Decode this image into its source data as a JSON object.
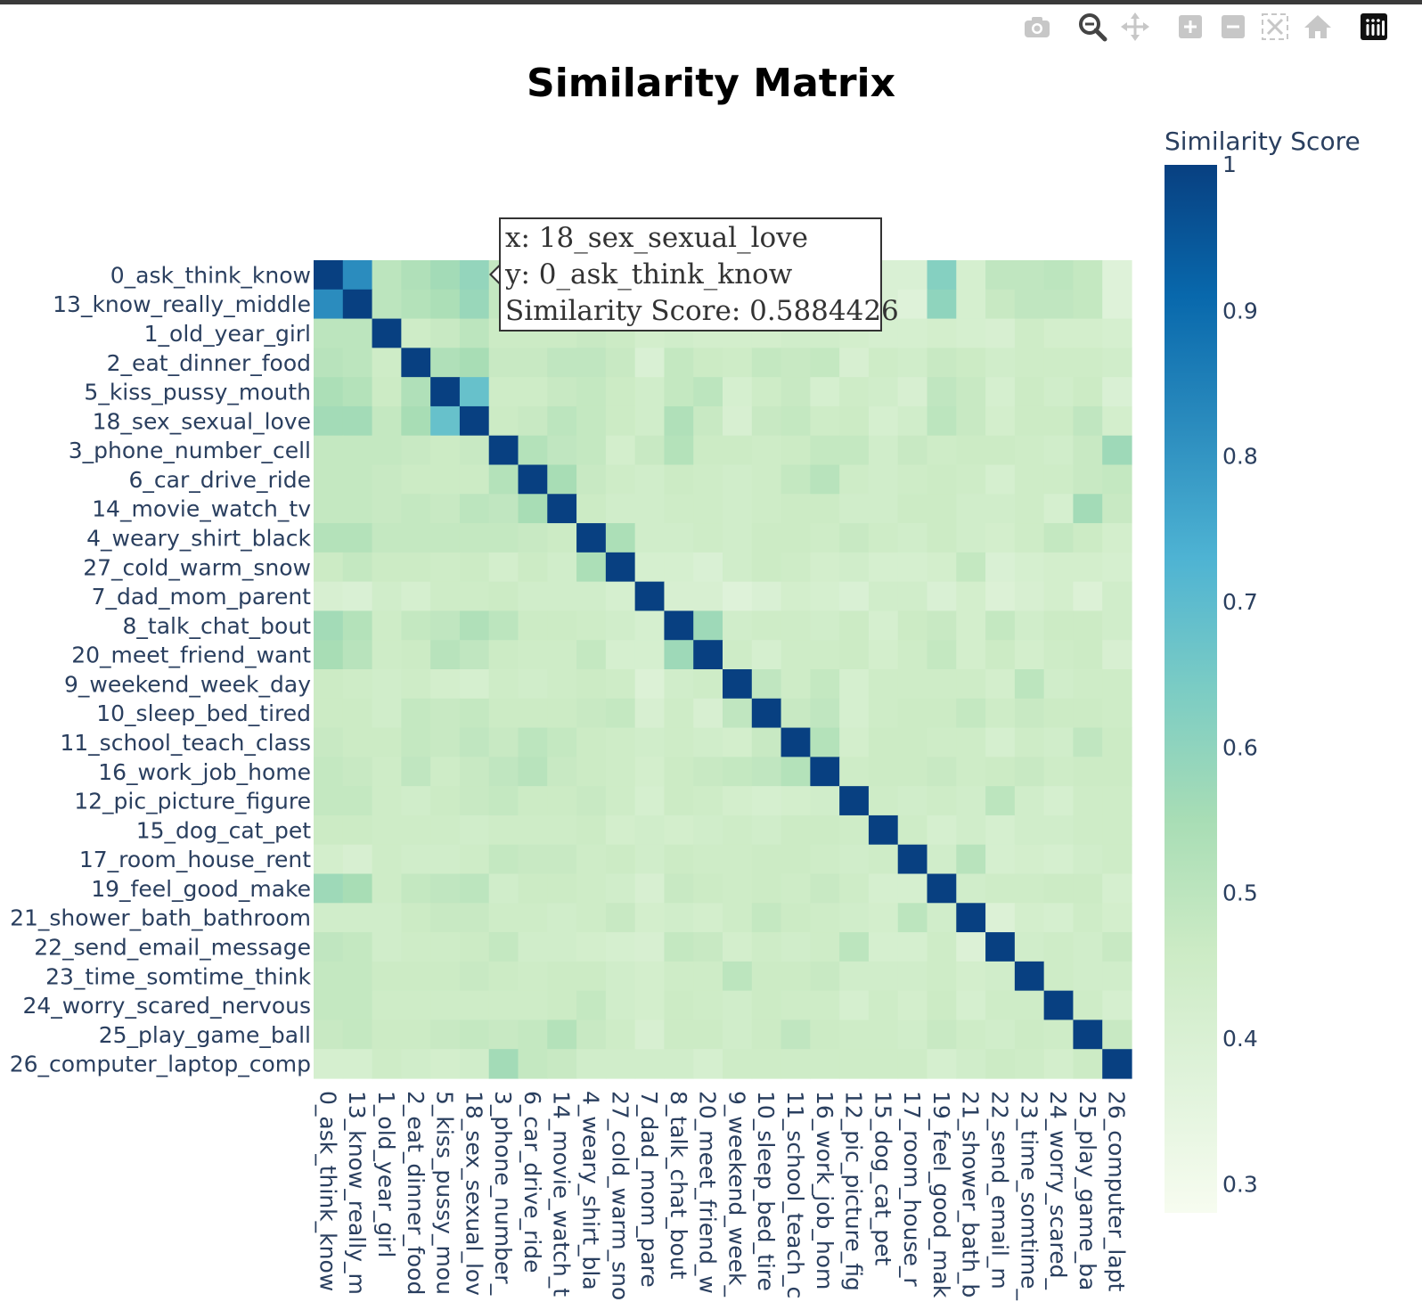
{
  "toolbar": {
    "buttons": [
      {
        "name": "camera-icon",
        "label": "Download plot as a png"
      },
      {
        "name": "zoom-icon",
        "label": "Zoom"
      },
      {
        "name": "pan-icon",
        "label": "Pan"
      },
      {
        "name": "zoom-in-icon",
        "label": "Zoom in"
      },
      {
        "name": "zoom-out-icon",
        "label": "Zoom out"
      },
      {
        "name": "autoscale-icon",
        "label": "Autoscale"
      },
      {
        "name": "home-icon",
        "label": "Reset axes"
      },
      {
        "name": "plotly-logo-icon",
        "label": "Produced with Plotly"
      }
    ]
  },
  "tooltip": {
    "x_line": "x: 18_sex_sexual_love",
    "y_line": "y: 0_ask_think_know",
    "score_line": "Similarity Score: 0.5884426"
  },
  "colors": {
    "scale": [
      "#f7fcf0",
      "#e0f3db",
      "#ccebc5",
      "#a8ddb5",
      "#7bccc4",
      "#4eb3d3",
      "#2b8cbe",
      "#0868ac",
      "#084081"
    ],
    "text": "#2a3f5f"
  },
  "chart_data": {
    "type": "heatmap",
    "title": "Similarity Matrix",
    "colorbar_title": "Similarity Score",
    "colorbar_ticks": [
      "1",
      "0.9",
      "0.8",
      "0.7",
      "0.6",
      "0.5",
      "0.4",
      "0.3"
    ],
    "colorbar_tick_values": [
      1,
      0.9,
      0.8,
      0.7,
      0.6,
      0.5,
      0.4,
      0.3
    ],
    "zmin": 0.28,
    "zmax": 1,
    "x_tick_labels": [
      "0_ask_think_know",
      "13_know_really_m",
      "1_old_year_girl",
      "2_eat_dinner_food",
      "5_kiss_pussy_mou",
      "18_sex_sexual_lov",
      "3_phone_number_",
      "6_car_drive_ride",
      "14_movie_watch_t",
      "4_weary_shirt_bla",
      "27_cold_warm_sno",
      "7_dad_mom_pare",
      "8_talk_chat_bout",
      "20_meet_friend_w",
      "9_weekend_week_",
      "10_sleep_bed_tire",
      "11_school_teach_c",
      "16_work_job_hom",
      "12_pic_picture_fig",
      "15_dog_cat_pet",
      "17_room_house_r",
      "19_feel_good_mak",
      "21_shower_bath_b",
      "22_send_email_m",
      "23_time_somtime_",
      "24_worry_scared_",
      "25_play_game_ba",
      "26_computer_lapt"
    ],
    "y": [
      "0_ask_think_know",
      "13_know_really_middle",
      "1_old_year_girl",
      "2_eat_dinner_food",
      "5_kiss_pussy_mouth",
      "18_sex_sexual_love",
      "3_phone_number_cell",
      "6_car_drive_ride",
      "14_movie_watch_tv",
      "4_weary_shirt_black",
      "27_cold_warm_snow",
      "7_dad_mom_parent",
      "8_talk_chat_bout",
      "20_meet_friend_want",
      "9_weekend_week_day",
      "10_sleep_bed_tired",
      "11_school_teach_class",
      "16_work_job_home",
      "12_pic_picture_figure",
      "15_dog_cat_pet",
      "17_room_house_rent",
      "19_feel_good_make",
      "21_shower_bath_bathroom",
      "22_send_email_message",
      "23_time_somtime_think",
      "24_worry_scared_nervous",
      "25_play_game_ball",
      "26_computer_laptop_comp"
    ],
    "z": [
      [
        1.0,
        0.82,
        0.5,
        0.53,
        0.56,
        0.59,
        0.48,
        0.47,
        0.48,
        0.52,
        0.46,
        0.42,
        0.46,
        0.44,
        0.45,
        0.45,
        0.45,
        0.45,
        0.44,
        0.4,
        0.4,
        0.62,
        0.42,
        0.49,
        0.49,
        0.5,
        0.48,
        0.38
      ],
      [
        0.82,
        1.0,
        0.5,
        0.52,
        0.54,
        0.58,
        0.48,
        0.47,
        0.48,
        0.52,
        0.46,
        0.42,
        0.46,
        0.44,
        0.45,
        0.45,
        0.45,
        0.45,
        0.44,
        0.4,
        0.38,
        0.6,
        0.42,
        0.47,
        0.49,
        0.49,
        0.48,
        0.38
      ],
      [
        0.5,
        0.5,
        1.0,
        0.45,
        0.47,
        0.5,
        0.46,
        0.46,
        0.46,
        0.47,
        0.46,
        0.43,
        0.44,
        0.43,
        0.43,
        0.43,
        0.44,
        0.44,
        0.43,
        0.42,
        0.42,
        0.43,
        0.42,
        0.41,
        0.45,
        0.43,
        0.43,
        0.42
      ],
      [
        0.51,
        0.5,
        0.45,
        1.0,
        0.53,
        0.55,
        0.47,
        0.47,
        0.49,
        0.49,
        0.47,
        0.4,
        0.48,
        0.46,
        0.45,
        0.48,
        0.47,
        0.48,
        0.41,
        0.45,
        0.44,
        0.47,
        0.46,
        0.44,
        0.45,
        0.45,
        0.45,
        0.44
      ],
      [
        0.54,
        0.52,
        0.46,
        0.53,
        1.0,
        0.68,
        0.45,
        0.45,
        0.47,
        0.48,
        0.46,
        0.44,
        0.48,
        0.5,
        0.42,
        0.45,
        0.47,
        0.42,
        0.45,
        0.44,
        0.41,
        0.49,
        0.47,
        0.42,
        0.46,
        0.44,
        0.46,
        0.4
      ],
      [
        0.56,
        0.56,
        0.48,
        0.55,
        0.68,
        1.0,
        0.46,
        0.47,
        0.5,
        0.48,
        0.46,
        0.44,
        0.53,
        0.47,
        0.41,
        0.47,
        0.48,
        0.45,
        0.46,
        0.42,
        0.44,
        0.5,
        0.47,
        0.43,
        0.46,
        0.46,
        0.49,
        0.43
      ],
      [
        0.48,
        0.48,
        0.48,
        0.47,
        0.46,
        0.47,
        1.0,
        0.52,
        0.49,
        0.48,
        0.43,
        0.47,
        0.52,
        0.46,
        0.46,
        0.45,
        0.46,
        0.48,
        0.48,
        0.44,
        0.47,
        0.45,
        0.46,
        0.46,
        0.45,
        0.44,
        0.47,
        0.57
      ],
      [
        0.48,
        0.48,
        0.47,
        0.46,
        0.46,
        0.46,
        0.52,
        1.0,
        0.55,
        0.47,
        0.45,
        0.44,
        0.46,
        0.45,
        0.44,
        0.45,
        0.48,
        0.51,
        0.45,
        0.44,
        0.45,
        0.46,
        0.45,
        0.42,
        0.45,
        0.45,
        0.47,
        0.48
      ],
      [
        0.48,
        0.48,
        0.47,
        0.48,
        0.47,
        0.5,
        0.49,
        0.55,
        1.0,
        0.46,
        0.44,
        0.44,
        0.45,
        0.45,
        0.44,
        0.45,
        0.46,
        0.46,
        0.44,
        0.44,
        0.46,
        0.46,
        0.44,
        0.44,
        0.45,
        0.42,
        0.56,
        0.47
      ],
      [
        0.52,
        0.52,
        0.48,
        0.48,
        0.48,
        0.48,
        0.48,
        0.47,
        0.46,
        1.0,
        0.54,
        0.44,
        0.44,
        0.45,
        0.44,
        0.46,
        0.46,
        0.45,
        0.47,
        0.45,
        0.44,
        0.46,
        0.44,
        0.43,
        0.45,
        0.48,
        0.46,
        0.43
      ],
      [
        0.46,
        0.48,
        0.46,
        0.46,
        0.45,
        0.46,
        0.43,
        0.46,
        0.44,
        0.54,
        1.0,
        0.42,
        0.42,
        0.4,
        0.44,
        0.46,
        0.45,
        0.43,
        0.44,
        0.42,
        0.42,
        0.43,
        0.48,
        0.4,
        0.42,
        0.43,
        0.43,
        0.42
      ],
      [
        0.41,
        0.4,
        0.44,
        0.42,
        0.45,
        0.45,
        0.46,
        0.44,
        0.44,
        0.44,
        0.42,
        1.0,
        0.41,
        0.41,
        0.38,
        0.4,
        0.43,
        0.42,
        0.4,
        0.44,
        0.44,
        0.4,
        0.43,
        0.39,
        0.41,
        0.43,
        0.39,
        0.44
      ],
      [
        0.56,
        0.52,
        0.45,
        0.48,
        0.49,
        0.53,
        0.5,
        0.46,
        0.46,
        0.45,
        0.44,
        0.42,
        1.0,
        0.57,
        0.44,
        0.45,
        0.45,
        0.44,
        0.46,
        0.42,
        0.46,
        0.47,
        0.43,
        0.48,
        0.44,
        0.46,
        0.46,
        0.44
      ],
      [
        0.55,
        0.51,
        0.45,
        0.46,
        0.51,
        0.49,
        0.46,
        0.45,
        0.45,
        0.48,
        0.42,
        0.42,
        0.57,
        1.0,
        0.45,
        0.42,
        0.45,
        0.45,
        0.46,
        0.43,
        0.45,
        0.48,
        0.43,
        0.46,
        0.43,
        0.45,
        0.46,
        0.41
      ],
      [
        0.46,
        0.45,
        0.44,
        0.45,
        0.43,
        0.42,
        0.45,
        0.44,
        0.45,
        0.46,
        0.45,
        0.39,
        0.44,
        0.45,
        1.0,
        0.49,
        0.45,
        0.48,
        0.42,
        0.45,
        0.45,
        0.45,
        0.45,
        0.43,
        0.5,
        0.44,
        0.45,
        0.45
      ],
      [
        0.46,
        0.46,
        0.44,
        0.48,
        0.47,
        0.48,
        0.46,
        0.46,
        0.46,
        0.47,
        0.48,
        0.41,
        0.45,
        0.41,
        0.49,
        1.0,
        0.47,
        0.49,
        0.42,
        0.45,
        0.46,
        0.46,
        0.48,
        0.45,
        0.47,
        0.46,
        0.46,
        0.45
      ],
      [
        0.47,
        0.46,
        0.46,
        0.48,
        0.47,
        0.49,
        0.47,
        0.5,
        0.48,
        0.46,
        0.45,
        0.44,
        0.45,
        0.44,
        0.43,
        0.47,
        1.0,
        0.52,
        0.43,
        0.46,
        0.46,
        0.45,
        0.45,
        0.42,
        0.45,
        0.44,
        0.49,
        0.46
      ],
      [
        0.48,
        0.47,
        0.45,
        0.49,
        0.45,
        0.47,
        0.49,
        0.51,
        0.47,
        0.46,
        0.45,
        0.43,
        0.46,
        0.47,
        0.48,
        0.49,
        0.52,
        1.0,
        0.45,
        0.46,
        0.46,
        0.47,
        0.45,
        0.46,
        0.47,
        0.45,
        0.46,
        0.46
      ],
      [
        0.48,
        0.48,
        0.45,
        0.44,
        0.46,
        0.47,
        0.48,
        0.46,
        0.46,
        0.47,
        0.45,
        0.42,
        0.46,
        0.45,
        0.43,
        0.42,
        0.43,
        0.44,
        1.0,
        0.45,
        0.44,
        0.45,
        0.44,
        0.5,
        0.44,
        0.42,
        0.45,
        0.45
      ],
      [
        0.46,
        0.46,
        0.45,
        0.45,
        0.45,
        0.44,
        0.45,
        0.45,
        0.45,
        0.46,
        0.43,
        0.44,
        0.43,
        0.44,
        0.45,
        0.44,
        0.46,
        0.46,
        0.45,
        1.0,
        0.45,
        0.42,
        0.44,
        0.42,
        0.44,
        0.44,
        0.45,
        0.45
      ],
      [
        0.43,
        0.41,
        0.45,
        0.44,
        0.44,
        0.45,
        0.48,
        0.47,
        0.47,
        0.45,
        0.46,
        0.44,
        0.46,
        0.45,
        0.45,
        0.46,
        0.46,
        0.45,
        0.44,
        0.45,
        1.0,
        0.44,
        0.51,
        0.42,
        0.43,
        0.42,
        0.44,
        0.45
      ],
      [
        0.57,
        0.55,
        0.45,
        0.48,
        0.49,
        0.5,
        0.44,
        0.46,
        0.46,
        0.45,
        0.44,
        0.41,
        0.47,
        0.46,
        0.45,
        0.46,
        0.45,
        0.47,
        0.45,
        0.42,
        0.42,
        1.0,
        0.44,
        0.45,
        0.45,
        0.46,
        0.46,
        0.42
      ],
      [
        0.44,
        0.44,
        0.44,
        0.46,
        0.47,
        0.47,
        0.45,
        0.45,
        0.44,
        0.45,
        0.47,
        0.43,
        0.44,
        0.43,
        0.45,
        0.48,
        0.46,
        0.45,
        0.44,
        0.43,
        0.5,
        0.44,
        1.0,
        0.39,
        0.43,
        0.42,
        0.45,
        0.43
      ],
      [
        0.49,
        0.48,
        0.44,
        0.45,
        0.45,
        0.46,
        0.48,
        0.44,
        0.44,
        0.43,
        0.42,
        0.41,
        0.48,
        0.47,
        0.43,
        0.45,
        0.44,
        0.45,
        0.5,
        0.42,
        0.42,
        0.45,
        0.39,
        1.0,
        0.44,
        0.45,
        0.44,
        0.47
      ],
      [
        0.48,
        0.48,
        0.46,
        0.46,
        0.46,
        0.47,
        0.46,
        0.45,
        0.46,
        0.46,
        0.44,
        0.43,
        0.45,
        0.45,
        0.5,
        0.46,
        0.46,
        0.47,
        0.44,
        0.44,
        0.44,
        0.45,
        0.43,
        0.44,
        1.0,
        0.45,
        0.44,
        0.44
      ],
      [
        0.48,
        0.48,
        0.45,
        0.45,
        0.45,
        0.45,
        0.45,
        0.45,
        0.46,
        0.48,
        0.44,
        0.43,
        0.46,
        0.45,
        0.44,
        0.46,
        0.45,
        0.45,
        0.42,
        0.45,
        0.43,
        0.46,
        0.42,
        0.45,
        0.45,
        1.0,
        0.45,
        0.42
      ],
      [
        0.47,
        0.48,
        0.46,
        0.46,
        0.47,
        0.48,
        0.47,
        0.48,
        0.52,
        0.47,
        0.45,
        0.41,
        0.46,
        0.46,
        0.44,
        0.46,
        0.49,
        0.46,
        0.45,
        0.45,
        0.44,
        0.47,
        0.45,
        0.44,
        0.46,
        0.45,
        1.0,
        0.47
      ],
      [
        0.42,
        0.42,
        0.45,
        0.44,
        0.43,
        0.44,
        0.56,
        0.48,
        0.47,
        0.44,
        0.44,
        0.44,
        0.44,
        0.42,
        0.45,
        0.45,
        0.45,
        0.45,
        0.45,
        0.45,
        0.45,
        0.42,
        0.44,
        0.46,
        0.45,
        0.43,
        0.46,
        1.0
      ]
    ]
  }
}
